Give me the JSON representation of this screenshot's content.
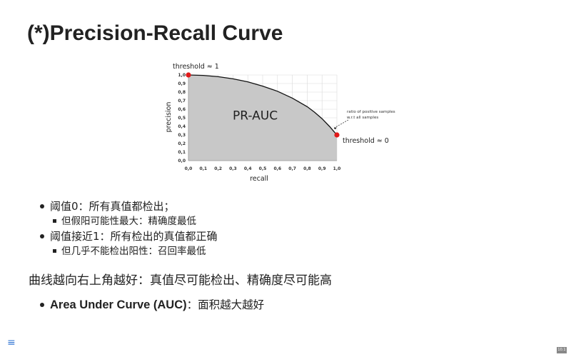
{
  "slide": {
    "title": "(*)Precision-Recall Curve",
    "bullets": [
      {
        "text": "阈值0：所有真值都检出；",
        "sub": "但假阳可能性最大：精确度最低"
      },
      {
        "text": "阈值接近1：所有检出的真值都正确",
        "sub": "但几乎不能检出阳性：召回率最低"
      }
    ],
    "summary": "曲线越向右上角越好：真值尽可能检出、精确度尽可能高",
    "auc_bold": "Area Under Curve (AUC)",
    "auc_rest": "：面积越大越好",
    "menu_icon": "≡",
    "slide_number": "10.1"
  },
  "chart_data": {
    "type": "area",
    "xlabel": "recall",
    "ylabel": "precision",
    "xlim": [
      0,
      1
    ],
    "ylim": [
      0,
      1
    ],
    "x_ticks": [
      "0,0",
      "0,1",
      "0,2",
      "0,3",
      "0,4",
      "0,5",
      "0,6",
      "0,7",
      "0,8",
      "0,9",
      "1,0"
    ],
    "y_ticks": [
      "1,0",
      "0,9",
      "0,8",
      "0,7",
      "0,6",
      "0,5",
      "0,4",
      "0,3",
      "0,2",
      "0,1",
      "0,0"
    ],
    "grid": true,
    "fill_color": "#c8c8c8",
    "point_color": "#e11a1a",
    "area_label": "PR-AUC",
    "threshold_top": "threshold ≈ 1",
    "threshold_bottom": "threshold ≈ 0",
    "annotation_lines": [
      "ratio of positive samples",
      "w.r.t all samples"
    ],
    "curve": {
      "x": [
        0,
        0.1,
        0.2,
        0.3,
        0.4,
        0.5,
        0.6,
        0.7,
        0.8,
        0.85,
        0.9,
        0.95,
        0.98,
        1.0
      ],
      "y": [
        1.0,
        0.995,
        0.98,
        0.955,
        0.92,
        0.87,
        0.81,
        0.73,
        0.63,
        0.565,
        0.49,
        0.4,
        0.34,
        0.3
      ]
    },
    "endpoints": [
      {
        "x": 0,
        "y": 1.0
      },
      {
        "x": 1.0,
        "y": 0.3
      }
    ]
  }
}
